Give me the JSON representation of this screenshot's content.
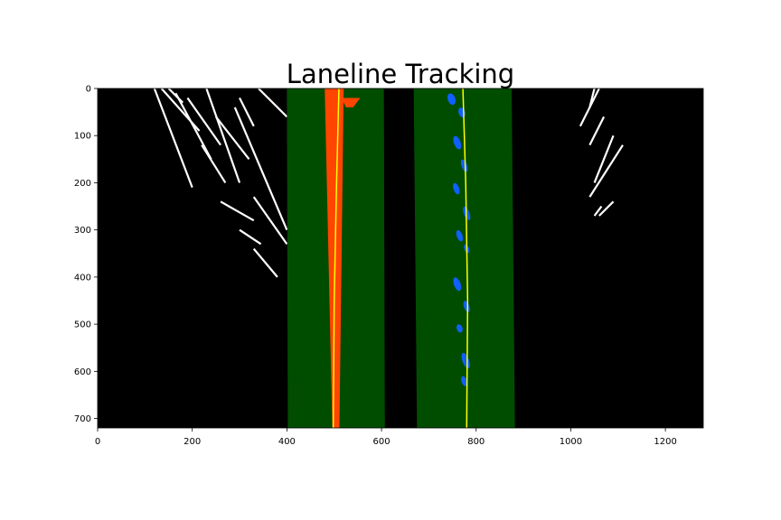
{
  "chart_data": {
    "type": "image",
    "title": "Laneline Tracking",
    "xlabel": "",
    "ylabel": "",
    "xlim": [
      0,
      1280
    ],
    "ylim": [
      720,
      0
    ],
    "xticks": [
      0,
      200,
      400,
      600,
      800,
      1000,
      1200
    ],
    "yticks": [
      0,
      100,
      200,
      300,
      400,
      500,
      600,
      700
    ],
    "background_color": "#000000",
    "search_windows": [
      {
        "name": "left",
        "color": "#004d00",
        "edges": [
          [
            400,
            0,
            605,
            0
          ],
          [
            402,
            720,
            607,
            720
          ]
        ]
      },
      {
        "name": "right",
        "color": "#004d00",
        "edges": [
          [
            668,
            0,
            875,
            0
          ],
          [
            675,
            720,
            882,
            720
          ]
        ]
      }
    ],
    "lane_pixels": [
      {
        "name": "left",
        "color": "#ff4500",
        "segments": [
          [
            480,
            0,
            496,
            720
          ],
          [
            515,
            20,
            525,
            40
          ]
        ]
      },
      {
        "name": "right",
        "color": "#1060ff",
        "blobs": [
          [
            748,
            10,
            8,
            25
          ],
          [
            770,
            40,
            7,
            22
          ],
          [
            760,
            100,
            7,
            30
          ],
          [
            775,
            150,
            6,
            28
          ],
          [
            758,
            200,
            6,
            25
          ],
          [
            780,
            250,
            6,
            30
          ],
          [
            765,
            300,
            6,
            25
          ],
          [
            780,
            330,
            5,
            20
          ],
          [
            760,
            400,
            7,
            30
          ],
          [
            780,
            450,
            6,
            25
          ],
          [
            765,
            500,
            6,
            18
          ],
          [
            778,
            560,
            7,
            35
          ],
          [
            775,
            610,
            6,
            22
          ]
        ]
      }
    ],
    "fit_lines": [
      {
        "name": "left",
        "color": "#ffff00",
        "points": [
          [
            510,
            0
          ],
          [
            505,
            200
          ],
          [
            500,
            450
          ],
          [
            498,
            720
          ]
        ]
      },
      {
        "name": "right",
        "color": "#ffff00",
        "points": [
          [
            772,
            0
          ],
          [
            778,
            200
          ],
          [
            782,
            450
          ],
          [
            780,
            720
          ]
        ]
      }
    ],
    "noise_color": "#ffffff"
  }
}
